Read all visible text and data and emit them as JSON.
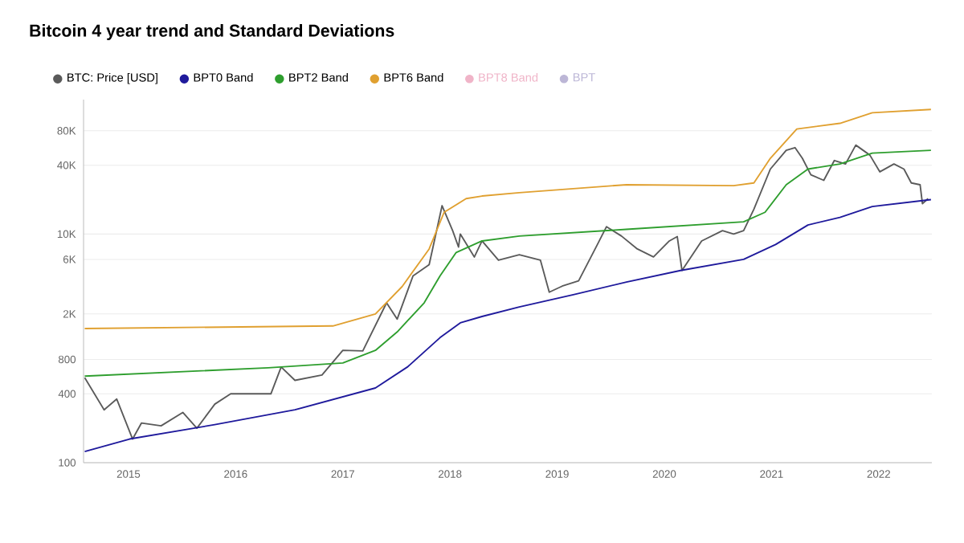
{
  "chart_data": {
    "type": "line",
    "title": "Bitcoin 4 year trend and Standard Deviations",
    "xlim": [
      "2014-08-01",
      "2022-07-01"
    ],
    "xticks": [
      "2015",
      "2016",
      "2017",
      "2018",
      "2019",
      "2020",
      "2021",
      "2022"
    ],
    "ylim": [
      100,
      150000
    ],
    "log": true,
    "grid": "y",
    "legend": "top left",
    "yticks": [
      100,
      400,
      800,
      {
        "value": 2000,
        "label": "2K"
      },
      {
        "value": 6000,
        "label": "6K"
      },
      {
        "value": 10000,
        "label": "10K"
      },
      {
        "value": 40000,
        "label": "40K"
      },
      {
        "value": 80000,
        "label": "80K"
      }
    ],
    "series": [
      {
        "name": "BTC: Price [USD]",
        "color": "#5a5a5a",
        "x": [
          "2014-08-05",
          "2014-10-10",
          "2014-11-22",
          "2015-01-15",
          "2015-02-14",
          "2015-04-22",
          "2015-07-05",
          "2015-08-22",
          "2015-10-22",
          "2015-12-15",
          "2016-05-01",
          "2016-06-05",
          "2016-07-22",
          "2016-10-22",
          "2017-01-01",
          "2017-03-10",
          "2017-05-30",
          "2017-07-05",
          "2017-08-28",
          "2017-10-22",
          "2017-12-05",
          "2018-01-10",
          "2018-01-30",
          "2018-02-05",
          "2018-03-25",
          "2018-04-20",
          "2018-06-15",
          "2018-08-25",
          "2018-11-05",
          "2018-12-05",
          "2019-01-18",
          "2019-03-15",
          "2019-05-18",
          "2019-06-18",
          "2019-08-08",
          "2019-10-01",
          "2019-11-25",
          "2020-01-18",
          "2020-02-14",
          "2020-03-02",
          "2020-05-08",
          "2020-07-18",
          "2020-08-25",
          "2020-09-28",
          "2020-11-02",
          "2020-12-28",
          "2021-02-20",
          "2021-03-22",
          "2021-04-16",
          "2021-05-15",
          "2021-06-28",
          "2021-08-03",
          "2021-09-10",
          "2021-10-15",
          "2021-12-02",
          "2022-01-05",
          "2022-02-22",
          "2022-03-28",
          "2022-04-22",
          "2022-05-22",
          "2022-05-30",
          "2022-06-18"
        ],
        "values": [
          553,
          290,
          360,
          161,
          222,
          210,
          275,
          200,
          325,
          400,
          400,
          687,
          525,
          585,
          960,
          950,
          2500,
          1800,
          4300,
          5400,
          17700,
          10700,
          7700,
          10000,
          6300,
          8700,
          5900,
          6600,
          5900,
          3100,
          3500,
          3900,
          8100,
          11600,
          9600,
          7400,
          6300,
          8700,
          9500,
          4800,
          8700,
          10700,
          10000,
          10700,
          16500,
          37000,
          54000,
          57000,
          46000,
          33000,
          29500,
          44000,
          41000,
          60000,
          49000,
          35000,
          41000,
          37000,
          28000,
          27000,
          18400,
          20400
        ]
      },
      {
        "name": "BPT0 Band",
        "color": "#1f1a9c",
        "x": [
          "2014-08-05",
          "2015-01-05",
          "2015-10-22",
          "2016-07-22",
          "2017-04-22",
          "2017-08-10",
          "2017-11-28",
          "2018-02-05",
          "2018-04-20",
          "2018-08-25",
          "2019-02-25",
          "2019-08-25",
          "2020-02-25",
          "2020-09-28",
          "2021-01-15",
          "2021-05-05",
          "2021-08-22",
          "2021-12-10",
          "2022-06-28"
        ],
        "values": [
          125,
          161,
          215,
          290,
          450,
          690,
          1240,
          1670,
          1900,
          2300,
          2950,
          3800,
          4800,
          6000,
          8100,
          12000,
          14000,
          17400,
          20000
        ]
      },
      {
        "name": "BPT2 Band",
        "color": "#2e9e2e",
        "x": [
          "2014-08-05",
          "2016-04-22",
          "2017-01-01",
          "2017-04-22",
          "2017-07-05",
          "2017-10-05",
          "2017-11-28",
          "2018-01-22",
          "2018-04-20",
          "2018-08-25",
          "2019-08-25",
          "2020-09-28",
          "2020-12-10",
          "2021-02-20",
          "2021-05-05",
          "2021-08-22",
          "2021-12-10",
          "2022-06-28"
        ],
        "values": [
          571,
          676,
          745,
          960,
          1390,
          2500,
          4300,
          6900,
          8700,
          9600,
          11000,
          12800,
          15500,
          27000,
          37000,
          41000,
          51000,
          54000
        ]
      },
      {
        "name": "BPT6 Band",
        "color": "#e0a030",
        "x": [
          "2014-08-05",
          "2016-11-28",
          "2017-04-22",
          "2017-07-22",
          "2017-10-22",
          "2017-12-12",
          "2018-02-25",
          "2018-04-20",
          "2018-08-25",
          "2019-08-25",
          "2020-08-25",
          "2020-11-02",
          "2020-12-28",
          "2021-03-28",
          "2021-08-22",
          "2021-12-10",
          "2022-06-28"
        ],
        "values": [
          1490,
          1570,
          2000,
          3470,
          7400,
          15500,
          20400,
          21500,
          23000,
          27000,
          26500,
          28000,
          46000,
          83000,
          93000,
          115000,
          123000
        ]
      },
      {
        "name": "BPT8 Band",
        "color": "#f0b4c8"
      },
      {
        "name": "BPT",
        "color": "#bcb6d6"
      }
    ]
  }
}
